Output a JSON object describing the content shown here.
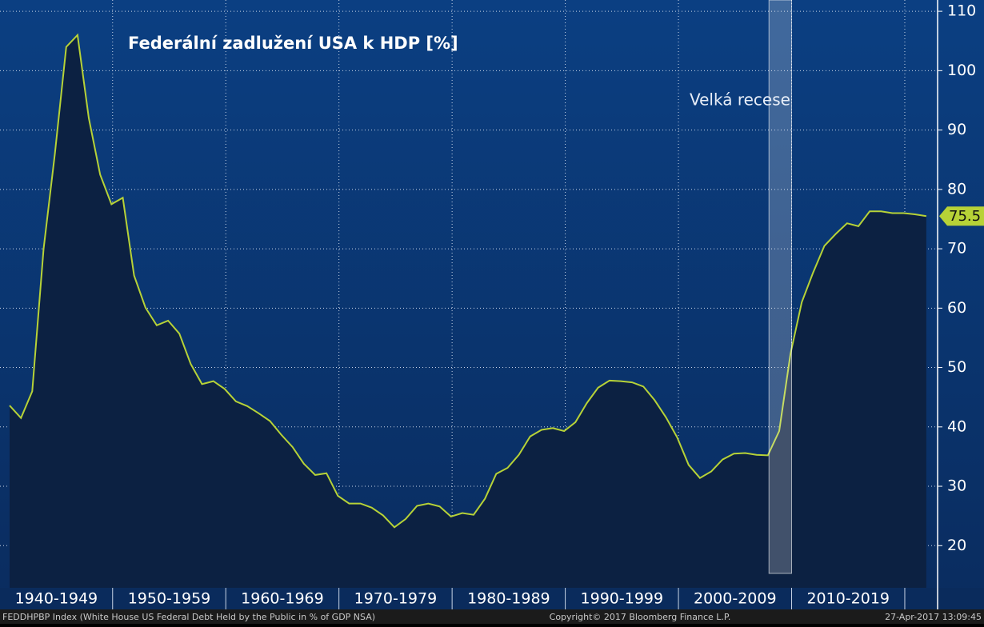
{
  "chart_data": {
    "type": "area",
    "title": "Federální zadlužení USA k HDP [%]",
    "annotation": "Velká recese",
    "shaded_range": [
      2007.1,
      2009.1
    ],
    "x": [
      1940,
      1941,
      1942,
      1943,
      1944,
      1945,
      1946,
      1947,
      1948,
      1949,
      1950,
      1951,
      1952,
      1953,
      1954,
      1955,
      1956,
      1957,
      1958,
      1959,
      1960,
      1961,
      1962,
      1963,
      1964,
      1965,
      1966,
      1967,
      1968,
      1969,
      1970,
      1971,
      1972,
      1973,
      1974,
      1975,
      1976,
      1977,
      1978,
      1979,
      1980,
      1981,
      1982,
      1983,
      1984,
      1985,
      1986,
      1987,
      1988,
      1989,
      1990,
      1991,
      1992,
      1993,
      1994,
      1995,
      1996,
      1997,
      1998,
      1999,
      2000,
      2001,
      2002,
      2003,
      2004,
      2005,
      2006,
      2007,
      2008,
      2009,
      2010,
      2011,
      2012,
      2013,
      2014,
      2015,
      2016,
      2017,
      2018,
      2019,
      2020,
      2021
    ],
    "series": [
      {
        "name": "FEDDHPBP Index",
        "color": "#b7d237",
        "fill": "#0c2142",
        "values": [
          43.6,
          41.5,
          46,
          70,
          86,
          104,
          106,
          92,
          82.5,
          77.5,
          78.6,
          65.5,
          60.1,
          57.1,
          57.9,
          55.7,
          50.6,
          47.2,
          47.7,
          46.4,
          44.3,
          43.5,
          42.3,
          41,
          38.7,
          36.6,
          33.8,
          31.9,
          32.2,
          28.4,
          27.1,
          27.1,
          26.4,
          25.1,
          23.1,
          24.5,
          26.7,
          27.1,
          26.6,
          24.9,
          25.5,
          25.2,
          27.9,
          32.1,
          33.1,
          35.3,
          38.4,
          39.5,
          39.8,
          39.3,
          40.8,
          44,
          46.6,
          47.8,
          47.7,
          47.5,
          46.8,
          44.5,
          41.6,
          38.2,
          33.6,
          31.4,
          32.5,
          34.5,
          35.5,
          35.6,
          35.3,
          35.2,
          39.3,
          52.3,
          61,
          66,
          70.5,
          72.5,
          74.3,
          73.8,
          76.3,
          76.3,
          76,
          76,
          75.8,
          75.5
        ]
      }
    ],
    "xlim": [
      1939.15,
      2022.0
    ],
    "xticks": [
      1949.1,
      1959.1,
      1969.1,
      1979.1,
      1989.1,
      1999.1,
      2009.1,
      2019.1
    ],
    "decade_labels": [
      "1940-1949",
      "1950-1959",
      "1960-1969",
      "1970-1979",
      "1980-1989",
      "1990-1999",
      "2000-2009",
      "2010-2019"
    ],
    "ylim": [
      12.9,
      111.9
    ],
    "yticks": [
      20,
      30,
      40,
      50,
      60,
      70,
      80,
      90,
      100,
      110
    ],
    "grid": true,
    "footer": {
      "source": "FEDDHPBP Index (White House US Federal Debt Held by the Public in % of GDP NSA)",
      "copyright": "Copyright© 2017 Bloomberg Finance L.P.",
      "timestamp": "27-Apr-2017 13:09:45"
    }
  }
}
